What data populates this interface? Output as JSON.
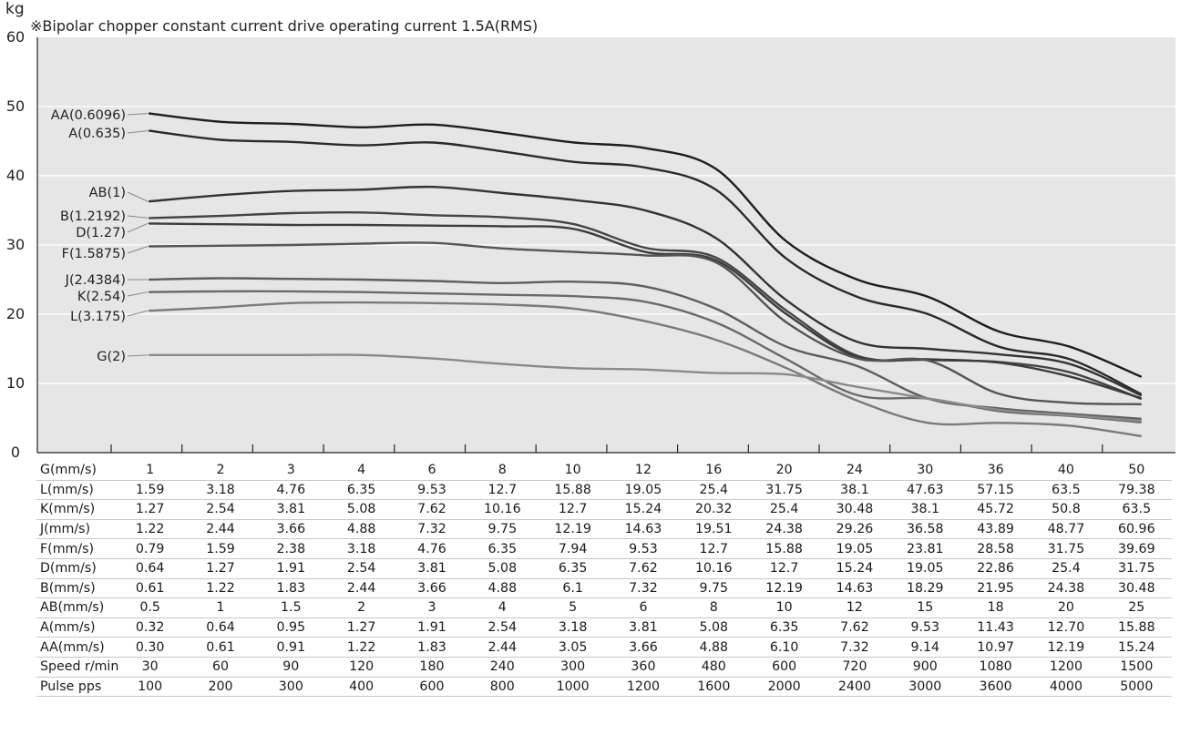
{
  "chart_data": {
    "type": "line",
    "title": "",
    "subtitle": "※Bipolar chopper constant current drive operating current 1.5A(RMS)",
    "ylabel": "kg",
    "xlabel": "",
    "ylim": [
      0,
      60
    ],
    "yticks": [
      0,
      10,
      20,
      30,
      40,
      50,
      60
    ],
    "grid": true,
    "x_index": [
      1,
      2,
      3,
      4,
      5,
      6,
      7,
      8,
      9,
      10,
      11,
      12,
      13,
      14,
      15
    ],
    "series": [
      {
        "name": "AA(0.6096)",
        "color": "#1e1e1e",
        "values": [
          49.0,
          47.8,
          47.5,
          47.0,
          47.4,
          46.2,
          44.8,
          44.0,
          41.0,
          30.5,
          25.0,
          22.5,
          17.5,
          15.3,
          11.0
        ]
      },
      {
        "name": "A(0.635)",
        "color": "#2a2a2a",
        "values": [
          46.5,
          45.2,
          44.9,
          44.4,
          44.8,
          43.5,
          42.0,
          41.2,
          38.0,
          28.0,
          22.5,
          20.0,
          15.3,
          13.5,
          8.5
        ]
      },
      {
        "name": "AB(1)",
        "color": "#333333",
        "values": [
          36.3,
          37.2,
          37.8,
          38.0,
          38.4,
          37.5,
          36.5,
          35.0,
          31.0,
          22.0,
          16.0,
          15.0,
          14.2,
          12.8,
          8.3
        ]
      },
      {
        "name": "B(1.2192)",
        "color": "#444444",
        "values": [
          33.9,
          34.2,
          34.6,
          34.7,
          34.3,
          34.0,
          33.0,
          29.6,
          28.2,
          20.5,
          14.0,
          13.4,
          13.1,
          11.6,
          7.8
        ]
      },
      {
        "name": "D(1.27)",
        "color": "#3c3c3c",
        "values": [
          33.1,
          33.0,
          32.9,
          32.9,
          32.8,
          32.7,
          32.3,
          29.0,
          27.8,
          20.0,
          13.8,
          13.5,
          13.0,
          11.0,
          7.9
        ]
      },
      {
        "name": "F(1.5875)",
        "color": "#555555",
        "values": [
          29.8,
          29.9,
          30.0,
          30.2,
          30.3,
          29.5,
          29.0,
          28.5,
          27.5,
          18.8,
          13.6,
          13.3,
          8.5,
          7.2,
          7.0
        ]
      },
      {
        "name": "J(2.4384)",
        "color": "#5e5e5e",
        "values": [
          25.0,
          25.2,
          25.1,
          25.0,
          24.8,
          24.5,
          24.7,
          24.0,
          20.8,
          15.3,
          12.5,
          7.8,
          6.4,
          5.6,
          4.9
        ]
      },
      {
        "name": "K(2.54)",
        "color": "#6a6a6a",
        "values": [
          23.2,
          23.3,
          23.3,
          23.2,
          23.0,
          22.8,
          22.6,
          21.8,
          18.8,
          13.5,
          8.3,
          7.8,
          6.0,
          5.3,
          4.4
        ]
      },
      {
        "name": "L(3.175)",
        "color": "#7a7a7a",
        "values": [
          20.5,
          21.0,
          21.6,
          21.7,
          21.6,
          21.4,
          20.8,
          19.0,
          16.3,
          12.2,
          7.5,
          4.3,
          4.3,
          3.9,
          2.4
        ]
      },
      {
        "name": "G(2)",
        "color": "#8a8a8a",
        "values": [
          14.1,
          14.1,
          14.1,
          14.1,
          13.6,
          12.8,
          12.2,
          12.0,
          11.5,
          11.3,
          9.5,
          7.8,
          6.2,
          5.4,
          4.6
        ]
      }
    ]
  },
  "unit_label": "kg",
  "table": {
    "rows": [
      {
        "label": "G(mm/s)",
        "values": [
          "1",
          "2",
          "3",
          "4",
          "6",
          "8",
          "10",
          "12",
          "16",
          "20",
          "24",
          "30",
          "36",
          "40",
          "50"
        ]
      },
      {
        "label": "L(mm/s)",
        "values": [
          "1.59",
          "3.18",
          "4.76",
          "6.35",
          "9.53",
          "12.7",
          "15.88",
          "19.05",
          "25.4",
          "31.75",
          "38.1",
          "47.63",
          "57.15",
          "63.5",
          "79.38"
        ]
      },
      {
        "label": "K(mm/s)",
        "values": [
          "1.27",
          "2.54",
          "3.81",
          "5.08",
          "7.62",
          "10.16",
          "12.7",
          "15.24",
          "20.32",
          "25.4",
          "30.48",
          "38.1",
          "45.72",
          "50.8",
          "63.5"
        ]
      },
      {
        "label": "J(mm/s)",
        "values": [
          "1.22",
          "2.44",
          "3.66",
          "4.88",
          "7.32",
          "9.75",
          "12.19",
          "14.63",
          "19.51",
          "24.38",
          "29.26",
          "36.58",
          "43.89",
          "48.77",
          "60.96"
        ]
      },
      {
        "label": "F(mm/s)",
        "values": [
          "0.79",
          "1.59",
          "2.38",
          "3.18",
          "4.76",
          "6.35",
          "7.94",
          "9.53",
          "12.7",
          "15.88",
          "19.05",
          "23.81",
          "28.58",
          "31.75",
          "39.69"
        ]
      },
      {
        "label": "D(mm/s)",
        "values": [
          "0.64",
          "1.27",
          "1.91",
          "2.54",
          "3.81",
          "5.08",
          "6.35",
          "7.62",
          "10.16",
          "12.7",
          "15.24",
          "19.05",
          "22.86",
          "25.4",
          "31.75"
        ]
      },
      {
        "label": "B(mm/s)",
        "values": [
          "0.61",
          "1.22",
          "1.83",
          "2.44",
          "3.66",
          "4.88",
          "6.1",
          "7.32",
          "9.75",
          "12.19",
          "14.63",
          "18.29",
          "21.95",
          "24.38",
          "30.48"
        ]
      },
      {
        "label": "AB(mm/s)",
        "values": [
          "0.5",
          "1",
          "1.5",
          "2",
          "3",
          "4",
          "5",
          "6",
          "8",
          "10",
          "12",
          "15",
          "18",
          "20",
          "25"
        ]
      },
      {
        "label": "A(mm/s)",
        "values": [
          "0.32",
          "0.64",
          "0.95",
          "1.27",
          "1.91",
          "2.54",
          "3.18",
          "3.81",
          "5.08",
          "6.35",
          "7.62",
          "9.53",
          "11.43",
          "12.70",
          "15.88"
        ]
      },
      {
        "label": "AA(mm/s)",
        "values": [
          "0.30",
          "0.61",
          "0.91",
          "1.22",
          "1.83",
          "2.44",
          "3.05",
          "3.66",
          "4.88",
          "6.10",
          "7.32",
          "9.14",
          "10.97",
          "12.19",
          "15.24"
        ]
      },
      {
        "label": "Speed r/min",
        "values": [
          "30",
          "60",
          "90",
          "120",
          "180",
          "240",
          "300",
          "360",
          "480",
          "600",
          "720",
          "900",
          "1080",
          "1200",
          "1500"
        ]
      },
      {
        "label": "Pulse pps",
        "values": [
          "100",
          "200",
          "300",
          "400",
          "600",
          "800",
          "1000",
          "1200",
          "1600",
          "2000",
          "2400",
          "3000",
          "3600",
          "4000",
          "5000"
        ]
      }
    ]
  },
  "colors": {
    "plot_background": "#e6e6e6",
    "grid": "#ffffff",
    "row_divider": "#c8c8c8"
  }
}
